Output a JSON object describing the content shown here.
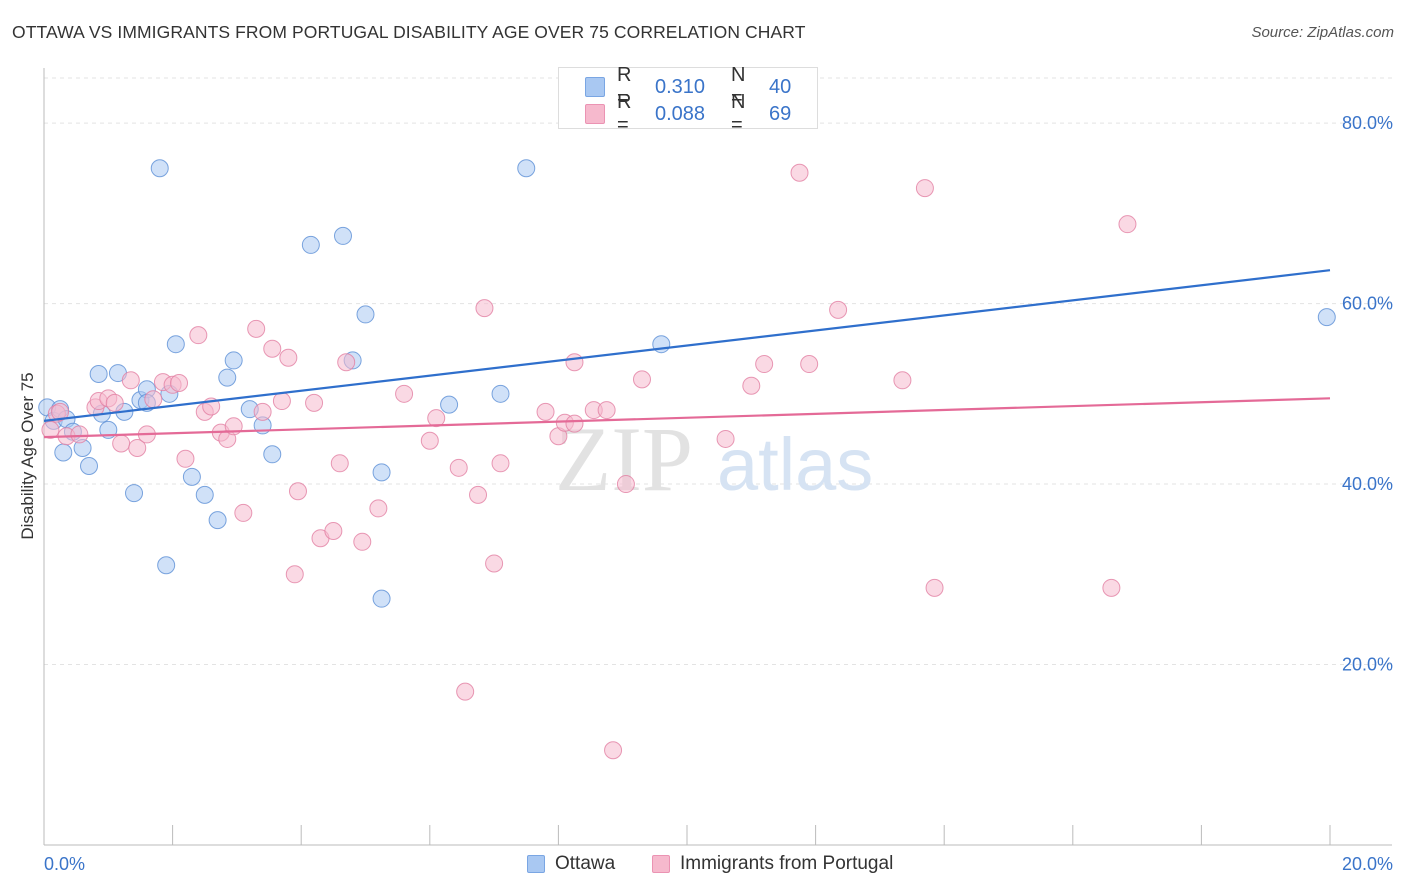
{
  "title": "OTTAWA VS IMMIGRANTS FROM PORTUGAL DISABILITY AGE OVER 75 CORRELATION CHART",
  "source": "Source: ZipAtlas.com",
  "watermark": {
    "zip": "ZIP",
    "atlas": "atlas"
  },
  "legend_top": {
    "rows": [
      {
        "r_label": "R =",
        "r_value": "0.310",
        "n_label": "N =",
        "n_value": "40",
        "color": "#a9c8f2"
      },
      {
        "r_label": "R =",
        "r_value": "0.088",
        "n_label": "N =",
        "n_value": "69",
        "color": "#f6b9cd"
      }
    ]
  },
  "colors": {
    "ottawa_fill": "#a9c8f2",
    "ottawa_stroke": "#5b8fd6",
    "ottawa_line": "#2f6fcc",
    "portugal_fill": "#f6b9cd",
    "portugal_stroke": "#e27fa3",
    "portugal_line": "#e46a97",
    "tick_label": "#3a74c9",
    "grid": "#e3e3e3"
  },
  "chart_data": {
    "type": "scatter",
    "title": "OTTAWA VS IMMIGRANTS FROM PORTUGAL DISABILITY AGE OVER 75 CORRELATION CHART",
    "xlabel": "",
    "ylabel": "Disability Age Over 75",
    "xlim": [
      0,
      20
    ],
    "ylim": [
      0,
      85
    ],
    "x_tick_labels": [
      "0.0%",
      "20.0%"
    ],
    "y_ticks": [
      20,
      40,
      60,
      80
    ],
    "y_tick_labels": [
      "20.0%",
      "40.0%",
      "60.0%",
      "80.0%"
    ],
    "grid": true,
    "legend": [
      "Ottawa",
      "Immigrants from Portugal"
    ],
    "series": [
      {
        "name": "Ottawa",
        "points": [
          [
            0.05,
            48.5
          ],
          [
            0.15,
            47
          ],
          [
            0.25,
            48.3
          ],
          [
            0.35,
            47.2
          ],
          [
            0.45,
            45.8
          ],
          [
            0.6,
            44
          ],
          [
            0.7,
            42
          ],
          [
            0.85,
            52.2
          ],
          [
            0.9,
            47.8
          ],
          [
            1.0,
            46
          ],
          [
            1.15,
            52.3
          ],
          [
            1.25,
            48
          ],
          [
            1.4,
            39
          ],
          [
            1.5,
            49.3
          ],
          [
            1.6,
            50.5
          ],
          [
            1.8,
            75
          ],
          [
            1.9,
            31
          ],
          [
            1.95,
            50
          ],
          [
            2.05,
            55.5
          ],
          [
            2.3,
            40.8
          ],
          [
            2.5,
            38.8
          ],
          [
            2.7,
            36
          ],
          [
            2.85,
            51.8
          ],
          [
            2.95,
            53.7
          ],
          [
            3.2,
            48.3
          ],
          [
            3.4,
            46.5
          ],
          [
            3.55,
            43.3
          ],
          [
            4.15,
            66.5
          ],
          [
            4.65,
            67.5
          ],
          [
            4.8,
            53.7
          ],
          [
            5.0,
            58.8
          ],
          [
            5.25,
            27.3
          ],
          [
            5.25,
            41.3
          ],
          [
            6.3,
            48.8
          ],
          [
            7.1,
            50
          ],
          [
            7.5,
            75
          ],
          [
            9.6,
            55.5
          ],
          [
            19.95,
            58.5
          ],
          [
            0.3,
            43.5
          ],
          [
            1.6,
            49
          ]
        ],
        "trend": {
          "x": [
            0,
            20
          ],
          "y": [
            47.0,
            63.7
          ]
        }
      },
      {
        "name": "Immigrants from Portugal",
        "points": [
          [
            0.1,
            46
          ],
          [
            0.2,
            47.8
          ],
          [
            0.35,
            45.3
          ],
          [
            0.55,
            45.5
          ],
          [
            0.8,
            48.5
          ],
          [
            0.85,
            49.2
          ],
          [
            1.0,
            49.5
          ],
          [
            1.1,
            49
          ],
          [
            1.2,
            44.5
          ],
          [
            1.35,
            51.5
          ],
          [
            1.45,
            44
          ],
          [
            1.6,
            45.5
          ],
          [
            1.7,
            49.4
          ],
          [
            1.85,
            51.3
          ],
          [
            2.0,
            51
          ],
          [
            2.1,
            51.2
          ],
          [
            2.2,
            42.8
          ],
          [
            2.4,
            56.5
          ],
          [
            2.5,
            48
          ],
          [
            2.6,
            48.6
          ],
          [
            2.75,
            45.7
          ],
          [
            2.85,
            45
          ],
          [
            2.95,
            46.4
          ],
          [
            3.1,
            36.8
          ],
          [
            3.3,
            57.2
          ],
          [
            3.4,
            48
          ],
          [
            3.55,
            55
          ],
          [
            3.7,
            49.2
          ],
          [
            3.8,
            54
          ],
          [
            3.9,
            30
          ],
          [
            3.95,
            39.2
          ],
          [
            4.2,
            49
          ],
          [
            4.3,
            34
          ],
          [
            4.5,
            34.8
          ],
          [
            4.6,
            42.3
          ],
          [
            4.7,
            53.5
          ],
          [
            4.95,
            33.6
          ],
          [
            5.2,
            37.3
          ],
          [
            5.6,
            50
          ],
          [
            6.0,
            44.8
          ],
          [
            6.1,
            47.3
          ],
          [
            6.45,
            41.8
          ],
          [
            6.55,
            17
          ],
          [
            6.75,
            38.8
          ],
          [
            6.85,
            59.5
          ],
          [
            7.0,
            31.2
          ],
          [
            7.1,
            42.3
          ],
          [
            7.8,
            48
          ],
          [
            8.0,
            45.3
          ],
          [
            8.1,
            46.8
          ],
          [
            8.25,
            46.7
          ],
          [
            8.25,
            53.5
          ],
          [
            8.55,
            48.2
          ],
          [
            8.75,
            48.2
          ],
          [
            8.85,
            10.5
          ],
          [
            9.05,
            40
          ],
          [
            9.3,
            51.6
          ],
          [
            10.6,
            45
          ],
          [
            11.0,
            50.9
          ],
          [
            11.2,
            53.3
          ],
          [
            11.75,
            74.5
          ],
          [
            11.9,
            53.3
          ],
          [
            12.35,
            59.3
          ],
          [
            13.35,
            51.5
          ],
          [
            13.7,
            72.8
          ],
          [
            13.85,
            28.5
          ],
          [
            16.6,
            28.5
          ],
          [
            16.85,
            68.8
          ],
          [
            0.25,
            48
          ]
        ],
        "trend": {
          "x": [
            0,
            20
          ],
          "y": [
            45.2,
            49.5
          ]
        }
      }
    ]
  },
  "bottom_legend": {
    "ottawa": "Ottawa",
    "portugal": "Immigrants from Portugal"
  }
}
